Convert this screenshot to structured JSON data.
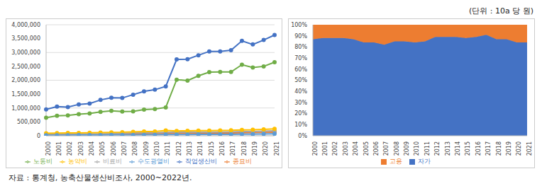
{
  "unit": "(단위 : 10a 당 원)",
  "source": "자료 : 통계청, 농축산물생산비조사, 2000~2022년.",
  "chart_data": [
    {
      "type": "line",
      "categories": [
        "2000",
        "2001",
        "2002",
        "2003",
        "2004",
        "2005",
        "2006",
        "2007",
        "2008",
        "2009",
        "2010",
        "2011",
        "2012",
        "2013",
        "2014",
        "2015",
        "2016",
        "2017",
        "2018",
        "2019",
        "2020",
        "2021"
      ],
      "ylim": [
        0,
        4000000
      ],
      "yticks": [
        0,
        {
          "value": 500000,
          "label": "500,000"
        },
        {
          "value": 1000000,
          "label": "1,000,000"
        },
        {
          "value": 1500000,
          "label": "1,500,000"
        },
        {
          "value": 2000000,
          "label": "2,000,000"
        },
        {
          "value": 2500000,
          "label": "2,500,000"
        },
        {
          "value": 3000000,
          "label": "3,000,000"
        },
        {
          "value": 3500000,
          "label": "3,500,000"
        },
        {
          "value": 4000000,
          "label": "4,000,000"
        }
      ],
      "grid": true,
      "marker": "circle",
      "legend": "bottom",
      "series": [
        {
          "name": "작업생산비",
          "color": "#4472c4",
          "values": [
            950000,
            1050000,
            1030000,
            1130000,
            1160000,
            1290000,
            1370000,
            1360000,
            1480000,
            1600000,
            1660000,
            1780000,
            2750000,
            2760000,
            2900000,
            3040000,
            3040000,
            3080000,
            3420000,
            3290000,
            3450000,
            3630000
          ]
        },
        {
          "name": "종묘비",
          "color": "#ed7d31",
          "values": [
            50000,
            52000,
            54000,
            56000,
            58000,
            60000,
            63000,
            65000,
            70000,
            75000,
            80000,
            85000,
            90000,
            92000,
            95000,
            98000,
            100000,
            105000,
            110000,
            112000,
            118000,
            125000
          ]
        },
        {
          "name": "비료비",
          "color": "#a5a5a5",
          "values": [
            60000,
            62000,
            64000,
            66000,
            70000,
            72000,
            75000,
            80000,
            100000,
            110000,
            110000,
            120000,
            125000,
            125000,
            130000,
            130000,
            135000,
            140000,
            150000,
            155000,
            165000,
            180000
          ]
        },
        {
          "name": "농약비",
          "color": "#ffc000",
          "values": [
            90000,
            95000,
            100000,
            105000,
            110000,
            115000,
            120000,
            125000,
            140000,
            150000,
            155000,
            190000,
            175000,
            180000,
            185000,
            185000,
            190000,
            195000,
            210000,
            215000,
            230000,
            250000
          ]
        },
        {
          "name": "수도광열비",
          "color": "#5b9bd5",
          "values": [
            20000,
            21000,
            22000,
            23000,
            25000,
            27000,
            29000,
            31000,
            35000,
            38000,
            40000,
            42000,
            45000,
            46000,
            48000,
            50000,
            52000,
            54000,
            58000,
            60000,
            63000,
            68000
          ]
        },
        {
          "name": "노동비",
          "color": "#70ad47",
          "values": [
            650000,
            720000,
            730000,
            780000,
            800000,
            860000,
            900000,
            870000,
            880000,
            940000,
            960000,
            1020000,
            2020000,
            1990000,
            2160000,
            2290000,
            2300000,
            2300000,
            2560000,
            2460000,
            2500000,
            2650000
          ]
        }
      ]
    },
    {
      "type": "area",
      "stacked": true,
      "categories": [
        "2000",
        "2001",
        "2002",
        "2003",
        "2004",
        "2005",
        "2006",
        "2007",
        "2008",
        "2009",
        "2010",
        "2011",
        "2012",
        "2013",
        "2014",
        "2015",
        "2016",
        "2017",
        "2018",
        "2019",
        "2020",
        "2021"
      ],
      "ylim": [
        0,
        100
      ],
      "yticks": [
        {
          "value": 0,
          "label": "0%"
        },
        {
          "value": 10,
          "label": "10%"
        },
        {
          "value": 20,
          "label": "20%"
        },
        {
          "value": 30,
          "label": "30%"
        },
        {
          "value": 40,
          "label": "40%"
        },
        {
          "value": 50,
          "label": "50%"
        },
        {
          "value": 60,
          "label": "60%"
        },
        {
          "value": 70,
          "label": "70%"
        },
        {
          "value": 80,
          "label": "80%"
        },
        {
          "value": 90,
          "label": "90%"
        },
        {
          "value": 100,
          "label": "100%"
        }
      ],
      "grid": false,
      "legend": "bottom",
      "series": [
        {
          "name": "자가",
          "color": "#4472c4",
          "values": [
            87,
            88,
            88,
            88,
            87,
            84,
            84,
            82,
            85,
            85,
            84,
            85,
            89,
            89,
            89,
            88,
            89,
            91,
            87,
            87,
            84,
            84
          ]
        },
        {
          "name": "고용",
          "color": "#ed7d31",
          "values": [
            13,
            12,
            12,
            12,
            13,
            16,
            16,
            18,
            15,
            15,
            16,
            15,
            11,
            11,
            11,
            12,
            11,
            9,
            13,
            13,
            16,
            16
          ]
        }
      ]
    }
  ]
}
